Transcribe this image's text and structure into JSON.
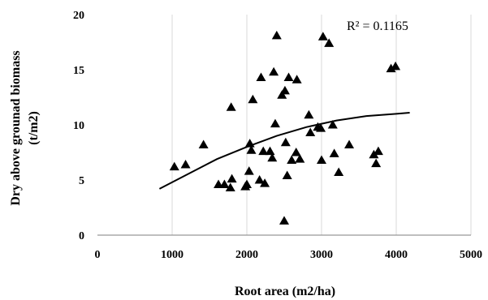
{
  "chart_data": {
    "type": "scatter",
    "xlabel": "Root area (m2/ha)",
    "ylabel_line1": "Dry above grounad biomass",
    "ylabel_line2": "(t/m2)",
    "xlim": [
      0,
      5000
    ],
    "ylim": [
      0,
      20
    ],
    "x_ticks": [
      0,
      1000,
      2000,
      3000,
      4000,
      5000
    ],
    "y_ticks": [
      0,
      5,
      10,
      15,
      20
    ],
    "grid": "vertical",
    "annotation": "R² = 0.1165",
    "marker": "triangle",
    "colors": {
      "marker": "#000000",
      "trend": "#000000",
      "grid": "#d9d9d9",
      "axis": "#7f7f7f"
    },
    "points": [
      [
        1030,
        6.2
      ],
      [
        1180,
        6.4
      ],
      [
        1420,
        8.2
      ],
      [
        1620,
        4.6
      ],
      [
        1700,
        4.6
      ],
      [
        1780,
        4.3
      ],
      [
        1790,
        11.6
      ],
      [
        1800,
        5.1
      ],
      [
        1980,
        4.4
      ],
      [
        2000,
        4.6
      ],
      [
        2030,
        5.8
      ],
      [
        2040,
        8.3
      ],
      [
        2060,
        7.7
      ],
      [
        2080,
        12.3
      ],
      [
        2170,
        5.0
      ],
      [
        2190,
        14.3
      ],
      [
        2220,
        7.6
      ],
      [
        2240,
        4.7
      ],
      [
        2310,
        7.6
      ],
      [
        2340,
        7.0
      ],
      [
        2360,
        14.8
      ],
      [
        2380,
        10.1
      ],
      [
        2400,
        18.1
      ],
      [
        2470,
        12.7
      ],
      [
        2510,
        13.1
      ],
      [
        2520,
        8.4
      ],
      [
        2540,
        5.4
      ],
      [
        2500,
        1.3
      ],
      [
        2560,
        14.3
      ],
      [
        2600,
        6.8
      ],
      [
        2660,
        7.5
      ],
      [
        2670,
        14.1
      ],
      [
        2710,
        6.9
      ],
      [
        2830,
        10.9
      ],
      [
        2850,
        9.3
      ],
      [
        2950,
        9.8
      ],
      [
        2990,
        9.7
      ],
      [
        3000,
        6.8
      ],
      [
        3020,
        18.0
      ],
      [
        3100,
        17.4
      ],
      [
        3150,
        10.0
      ],
      [
        3170,
        7.4
      ],
      [
        3230,
        5.7
      ],
      [
        3370,
        8.2
      ],
      [
        3700,
        7.3
      ],
      [
        3730,
        6.5
      ],
      [
        3760,
        7.6
      ],
      [
        3930,
        15.1
      ],
      [
        3990,
        15.3
      ]
    ],
    "trendline": {
      "type": "polynomial",
      "x_start": 830,
      "x_end": 4180,
      "points": [
        [
          830,
          4.2
        ],
        [
          1200,
          5.5
        ],
        [
          1600,
          6.9
        ],
        [
          2000,
          8.0
        ],
        [
          2400,
          9.0
        ],
        [
          2800,
          9.8
        ],
        [
          3200,
          10.4
        ],
        [
          3600,
          10.8
        ],
        [
          4000,
          11.0
        ],
        [
          4180,
          11.1
        ]
      ]
    }
  }
}
